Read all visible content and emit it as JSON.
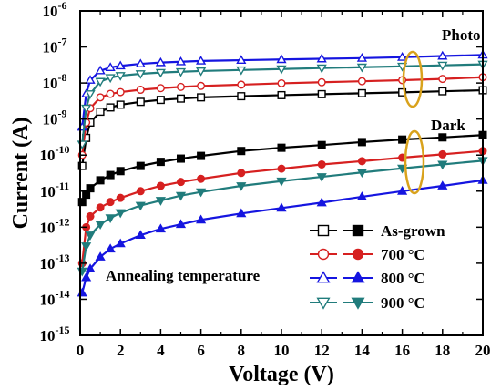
{
  "chart_data": {
    "type": "line",
    "y_scale": "log",
    "xlabel": "Voltage (V)",
    "ylabel": "Current (A)",
    "xlim": [
      0,
      20
    ],
    "ylim_exponents": [
      -15,
      -6
    ],
    "x_ticks": [
      "0",
      "2",
      "4",
      "6",
      "8",
      "10",
      "12",
      "14",
      "16",
      "18",
      "20"
    ],
    "y_tick_base": "10",
    "y_tick_exponents": [
      "-15",
      "-14",
      "-13",
      "-12",
      "-11",
      "-10",
      "-9",
      "-8",
      "-7",
      "-6"
    ],
    "grid": false,
    "annotations": {
      "photo": "Photo",
      "dark": "Dark",
      "annealing": "Annealing temperature"
    },
    "legend": [
      {
        "label": "As-grown",
        "color": "#000000",
        "marker": "square"
      },
      {
        "label": "700 °C",
        "color": "#d62020",
        "marker": "circle"
      },
      {
        "label": "800 °C",
        "color": "#1515e0",
        "marker": "triangle-up"
      },
      {
        "label": "900 °C",
        "color": "#217c7c",
        "marker": "triangle-down"
      }
    ],
    "x": [
      0.1,
      0.3,
      0.5,
      1,
      1.5,
      2,
      3,
      4,
      5,
      6,
      8,
      10,
      12,
      14,
      16,
      18,
      20
    ],
    "series": [
      {
        "name": "As-grown",
        "mode": "Photo",
        "color": "#000000",
        "marker": "square",
        "filled": false,
        "values": [
          5e-11,
          3e-10,
          8e-10,
          1.6e-09,
          2.1e-09,
          2.5e-09,
          3e-09,
          3.4e-09,
          3.7e-09,
          4e-09,
          4.3e-09,
          4.6e-09,
          4.9e-09,
          5.2e-09,
          5.5e-09,
          5.9e-09,
          6.3e-09
        ]
      },
      {
        "name": "700 °C",
        "mode": "Photo",
        "color": "#d62020",
        "marker": "circle",
        "filled": false,
        "values": [
          1e-10,
          8e-10,
          2e-09,
          4e-09,
          5e-09,
          5.6e-09,
          6.5e-09,
          7.2e-09,
          7.8e-09,
          8.3e-09,
          9e-09,
          9.8e-09,
          1.05e-08,
          1.12e-08,
          1.2e-08,
          1.3e-08,
          1.45e-08
        ]
      },
      {
        "name": "800 °C",
        "mode": "Photo",
        "color": "#1515e0",
        "marker": "triangle-up",
        "filled": false,
        "values": [
          6e-10,
          5e-09,
          1.2e-08,
          2.2e-08,
          2.7e-08,
          3e-08,
          3.4e-08,
          3.7e-08,
          3.9e-08,
          4.1e-08,
          4.3e-08,
          4.5e-08,
          4.7e-08,
          4.9e-08,
          5.2e-08,
          5.6e-08,
          6e-08
        ]
      },
      {
        "name": "900 °C",
        "mode": "Photo",
        "color": "#217c7c",
        "marker": "triangle-down",
        "filled": false,
        "values": [
          2e-10,
          2e-09,
          5e-09,
          1.1e-08,
          1.4e-08,
          1.6e-08,
          1.8e-08,
          1.95e-08,
          2.05e-08,
          2.15e-08,
          2.3e-08,
          2.45e-08,
          2.6e-08,
          2.75e-08,
          2.9e-08,
          3.1e-08,
          3.3e-08
        ]
      },
      {
        "name": "As-grown",
        "mode": "Dark",
        "color": "#000000",
        "marker": "square",
        "filled": true,
        "values": [
          5e-12,
          8e-12,
          1.2e-11,
          2e-11,
          2.8e-11,
          3.6e-11,
          5e-11,
          6.5e-11,
          8e-11,
          9.5e-11,
          1.3e-10,
          1.6e-10,
          1.9e-10,
          2.3e-10,
          2.7e-10,
          3.1e-10,
          3.6e-10
        ]
      },
      {
        "name": "700 °C",
        "mode": "Dark",
        "color": "#d62020",
        "marker": "circle",
        "filled": true,
        "values": [
          1e-13,
          1e-12,
          2e-12,
          3.5e-12,
          5e-12,
          6.5e-12,
          1e-11,
          1.4e-11,
          1.8e-11,
          2.2e-11,
          3.2e-11,
          4.2e-11,
          5.5e-11,
          6.8e-11,
          8.5e-11,
          1.05e-10,
          1.3e-10
        ]
      },
      {
        "name": "800 °C",
        "mode": "Dark",
        "color": "#1515e0",
        "marker": "triangle-up",
        "filled": true,
        "values": [
          1.5e-14,
          4e-14,
          7e-14,
          1.5e-13,
          2.5e-13,
          3.5e-13,
          6e-13,
          9e-13,
          1.2e-12,
          1.6e-12,
          2.4e-12,
          3.4e-12,
          4.8e-12,
          7e-12,
          1e-11,
          1.4e-11,
          2e-11
        ]
      },
      {
        "name": "900 °C",
        "mode": "Dark",
        "color": "#217c7c",
        "marker": "triangle-down",
        "filled": true,
        "values": [
          6e-14,
          3e-13,
          6e-13,
          1.2e-12,
          1.8e-12,
          2.5e-12,
          4e-12,
          5.5e-12,
          7.5e-12,
          9.5e-12,
          1.4e-11,
          1.9e-11,
          2.5e-11,
          3.3e-11,
          4.3e-11,
          5.5e-11,
          7e-11
        ]
      }
    ]
  }
}
